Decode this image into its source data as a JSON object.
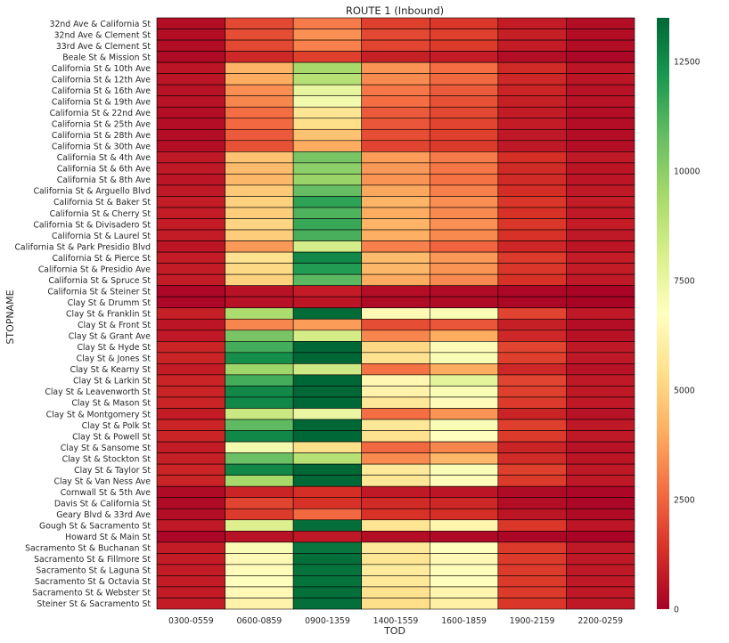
{
  "chart_data": {
    "type": "heatmap",
    "title": "ROUTE 1 (Inbound)",
    "xlabel": "TOD",
    "ylabel": "STOPNAME",
    "categories": [
      "0300-0559",
      "0600-0859",
      "0900-1359",
      "1400-1559",
      "1600-1859",
      "1900-2159",
      "2200-0259"
    ],
    "rows": [
      "32nd Ave & California St",
      "32nd Ave & Clement St",
      "33rd Ave & Clement St",
      "Beale St & Mission St",
      "California St & 10th Ave",
      "California St & 12th Ave",
      "California St & 16th Ave",
      "California St & 19th Ave",
      "California St & 22nd Ave",
      "California St & 25th Ave",
      "California St & 28th Ave",
      "California St & 30th Ave",
      "California St & 4th Ave",
      "California St & 6th Ave",
      "California St & 8th Ave",
      "California St & Arguello Blvd",
      "California St & Baker St",
      "California St & Cherry St",
      "California St & Divisadero St",
      "California St & Laurel St",
      "California St & Park Presidio Blvd",
      "California St & Pierce St",
      "California St & Presidio Ave",
      "California St & Spruce St",
      "California St & Steiner St",
      "Clay St & Drumm St",
      "Clay St & Franklin St",
      "Clay St & Front St",
      "Clay St & Grant Ave",
      "Clay St & Hyde St",
      "Clay St & Jones St",
      "Clay St & Kearny St",
      "Clay St & Larkin St",
      "Clay St & Leavenworth St",
      "Clay St & Mason St",
      "Clay St & Montgomery St",
      "Clay St & Polk St",
      "Clay St & Powell St",
      "Clay St & Sansome St",
      "Clay St & Stockton St",
      "Clay St & Taylor St",
      "Clay St & Van Ness Ave",
      "Cornwall St & 5th Ave",
      "Davis St & California St",
      "Geary Blvd & 33rd Ave",
      "Gough St & Sacramento St",
      "Howard St & Main St",
      "Sacramento St & Buchanan St",
      "Sacramento St & Fillmore St",
      "Sacramento St & Laguna St",
      "Sacramento St & Octavia St",
      "Sacramento St & Webster St",
      "Steiner St & Sacramento St"
    ],
    "values": [
      [
        400,
        1900,
        3000,
        1700,
        1500,
        800,
        400
      ],
      [
        400,
        2000,
        3400,
        1900,
        1700,
        900,
        400
      ],
      [
        400,
        1900,
        3100,
        1800,
        1600,
        800,
        400
      ],
      [
        300,
        1100,
        1700,
        900,
        800,
        400,
        200
      ],
      [
        600,
        4200,
        9400,
        3500,
        2700,
        1200,
        600
      ],
      [
        600,
        4000,
        9000,
        3300,
        2600,
        1100,
        600
      ],
      [
        500,
        3400,
        7600,
        2900,
        2300,
        1000,
        500
      ],
      [
        500,
        3200,
        7200,
        2700,
        2100,
        900,
        500
      ],
      [
        400,
        2700,
        5600,
        2300,
        1900,
        800,
        400
      ],
      [
        400,
        2600,
        5400,
        2200,
        1800,
        800,
        400
      ],
      [
        400,
        2300,
        4600,
        2000,
        1700,
        700,
        400
      ],
      [
        400,
        2100,
        4000,
        1800,
        1600,
        700,
        400
      ],
      [
        700,
        4600,
        10400,
        3700,
        3000,
        1300,
        700
      ],
      [
        700,
        4400,
        10000,
        3600,
        2900,
        1200,
        600
      ],
      [
        600,
        4300,
        9700,
        3500,
        2800,
        1200,
        600
      ],
      [
        700,
        4800,
        10800,
        3900,
        3100,
        1300,
        700
      ],
      [
        800,
        5000,
        11800,
        4200,
        3400,
        1500,
        800
      ],
      [
        800,
        4900,
        11200,
        4000,
        3300,
        1400,
        700
      ],
      [
        800,
        5100,
        11600,
        4200,
        3400,
        1500,
        800
      ],
      [
        800,
        4900,
        11300,
        4100,
        3300,
        1400,
        700
      ],
      [
        600,
        3600,
        8200,
        3100,
        2500,
        1100,
        600
      ],
      [
        800,
        5500,
        12600,
        4400,
        3600,
        1600,
        800
      ],
      [
        800,
        5200,
        12000,
        4300,
        3500,
        1500,
        800
      ],
      [
        800,
        5000,
        11000,
        4000,
        3300,
        1400,
        700
      ],
      [
        200,
        500,
        800,
        400,
        300,
        200,
        100
      ],
      [
        200,
        500,
        600,
        300,
        300,
        200,
        100
      ],
      [
        900,
        9300,
        13400,
        6500,
        7000,
        1800,
        700
      ],
      [
        600,
        3200,
        3700,
        2000,
        2200,
        900,
        400
      ],
      [
        700,
        10400,
        8200,
        3200,
        4000,
        1100,
        500
      ],
      [
        1000,
        11400,
        13500,
        5200,
        6600,
        1800,
        700
      ],
      [
        1000,
        12400,
        13500,
        5500,
        7000,
        1700,
        700
      ],
      [
        800,
        9600,
        8400,
        2800,
        4000,
        1100,
        500
      ],
      [
        1000,
        11400,
        13500,
        6400,
        7700,
        1800,
        700
      ],
      [
        1000,
        12600,
        13500,
        6200,
        7000,
        1700,
        700
      ],
      [
        1000,
        12600,
        13500,
        5700,
        6600,
        1600,
        700
      ],
      [
        800,
        8500,
        7500,
        2700,
        3500,
        1000,
        500
      ],
      [
        1000,
        10900,
        13500,
        5700,
        7000,
        1700,
        700
      ],
      [
        1000,
        12600,
        13500,
        5500,
        6700,
        1600,
        700
      ],
      [
        800,
        7200,
        5400,
        2600,
        3200,
        1000,
        500
      ],
      [
        900,
        10700,
        9000,
        3300,
        4300,
        1200,
        600
      ],
      [
        1000,
        12600,
        13500,
        5800,
        7000,
        1700,
        700
      ],
      [
        1000,
        9400,
        13500,
        5700,
        6600,
        1600,
        700
      ],
      [
        300,
        1000,
        1300,
        700,
        600,
        300,
        200
      ],
      [
        300,
        1800,
        1400,
        1200,
        1100,
        400,
        200
      ],
      [
        400,
        1600,
        2600,
        1400,
        1300,
        600,
        300
      ],
      [
        700,
        8000,
        13300,
        5600,
        6300,
        1500,
        600
      ],
      [
        200,
        500,
        700,
        400,
        300,
        200,
        100
      ],
      [
        800,
        7000,
        13100,
        5800,
        6800,
        1600,
        700
      ],
      [
        800,
        6500,
        13300,
        5600,
        6500,
        1600,
        700
      ],
      [
        800,
        6600,
        13200,
        5900,
        6900,
        1600,
        700
      ],
      [
        800,
        6800,
        13200,
        5800,
        6800,
        1600,
        700
      ],
      [
        800,
        6500,
        13300,
        5500,
        6300,
        1600,
        700
      ],
      [
        800,
        6200,
        13300,
        5400,
        6100,
        1500,
        700
      ]
    ],
    "colorbar": {
      "min": 0,
      "max": 13500,
      "ticks": [
        0,
        2500,
        5000,
        7500,
        10000,
        12500
      ],
      "colormap": "RdYlGn"
    },
    "grid": true,
    "legend_position": "right"
  }
}
